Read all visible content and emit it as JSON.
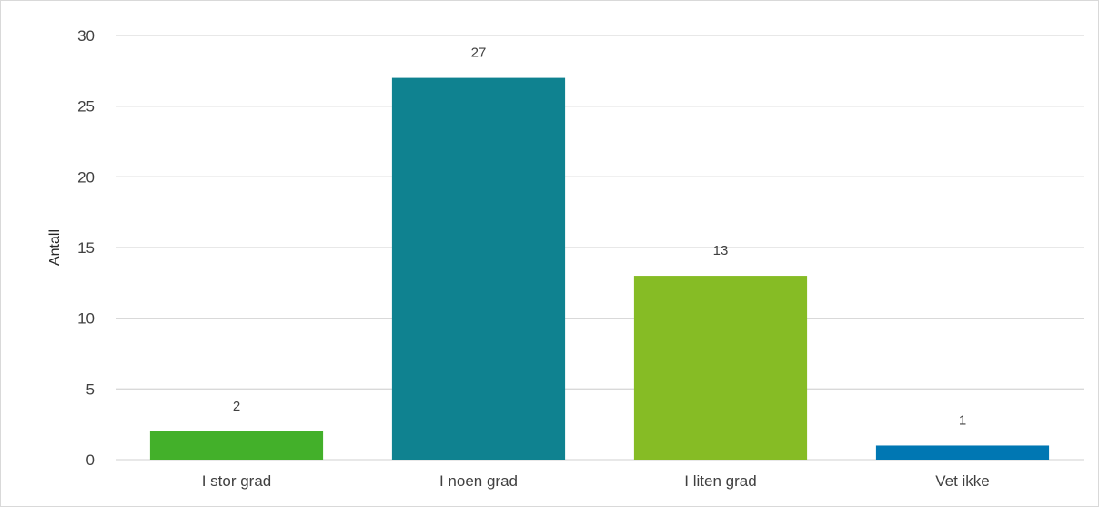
{
  "chart_data": {
    "type": "bar",
    "title": "",
    "xlabel": "",
    "ylabel": "Antall",
    "ylim": [
      0,
      30
    ],
    "yticks": [
      0,
      5,
      10,
      15,
      20,
      25,
      30
    ],
    "grid": true,
    "legend": "none",
    "categories": [
      "I stor grad",
      "I noen grad",
      "I liten grad",
      "Vet ikke"
    ],
    "values": [
      2,
      27,
      13,
      1
    ],
    "data_labels": [
      "2",
      "27",
      "13",
      "1"
    ],
    "colors": [
      "#43b02a",
      "#0f8290",
      "#86bc25",
      "#0077b3"
    ]
  }
}
